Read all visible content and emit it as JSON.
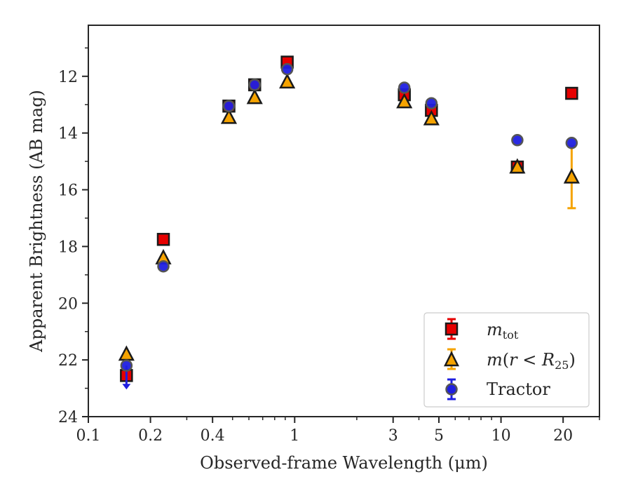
{
  "chart_data": {
    "type": "scatter",
    "xlabel": "Observed-frame Wavelength (μm)",
    "ylabel": "Apparent Brightness (AB mag)",
    "xscale": "log",
    "yaxis_inverted": true,
    "xlim": [
      0.1,
      30
    ],
    "ylim": [
      24,
      10.2
    ],
    "x_ticks": [
      0.1,
      0.2,
      0.4,
      1,
      3,
      5,
      10,
      20
    ],
    "x_tick_labels": [
      "0.1",
      "0.2",
      "0.4",
      "1",
      "3",
      "5",
      "10",
      "20"
    ],
    "y_ticks": [
      12,
      14,
      16,
      18,
      20,
      22,
      24
    ],
    "y_tick_labels": [
      "12",
      "14",
      "16",
      "18",
      "20",
      "22",
      "24"
    ],
    "grid": false,
    "legend_position": "bottom-right",
    "legend": [
      "m_tot",
      "m(r < R_25)",
      "Tractor"
    ],
    "series": [
      {
        "name": "m_tot",
        "marker": "square",
        "color": "#e60000",
        "edge_color": "#1a1a1a",
        "x": [
          0.153,
          0.231,
          0.48,
          0.64,
          0.92,
          3.4,
          4.6,
          12.0,
          22.0
        ],
        "y": [
          22.55,
          17.75,
          13.05,
          12.3,
          11.5,
          12.65,
          13.2,
          15.2,
          12.6
        ]
      },
      {
        "name": "m(r < R_25)",
        "marker": "triangle",
        "color": "#f5a300",
        "edge_color": "#1a1a1a",
        "x": [
          0.153,
          0.231,
          0.48,
          0.64,
          0.92,
          3.4,
          4.6,
          12.0,
          22.0
        ],
        "y": [
          21.8,
          18.4,
          13.45,
          12.75,
          12.2,
          12.9,
          13.5,
          15.2,
          15.55
        ],
        "yerr": [
          0,
          0,
          0,
          0,
          0,
          0,
          0,
          0,
          1.1
        ]
      },
      {
        "name": "Tractor",
        "marker": "circle",
        "color": "#1f1fe0",
        "edge_color": "#555555",
        "x": [
          0.153,
          0.231,
          0.48,
          0.64,
          0.92,
          3.4,
          4.6,
          12.0,
          22.0
        ],
        "y": [
          22.2,
          18.7,
          13.05,
          12.3,
          11.75,
          12.4,
          12.95,
          14.25,
          14.35
        ],
        "upper_limit": [
          true,
          false,
          false,
          false,
          false,
          false,
          false,
          false,
          false
        ]
      }
    ]
  }
}
